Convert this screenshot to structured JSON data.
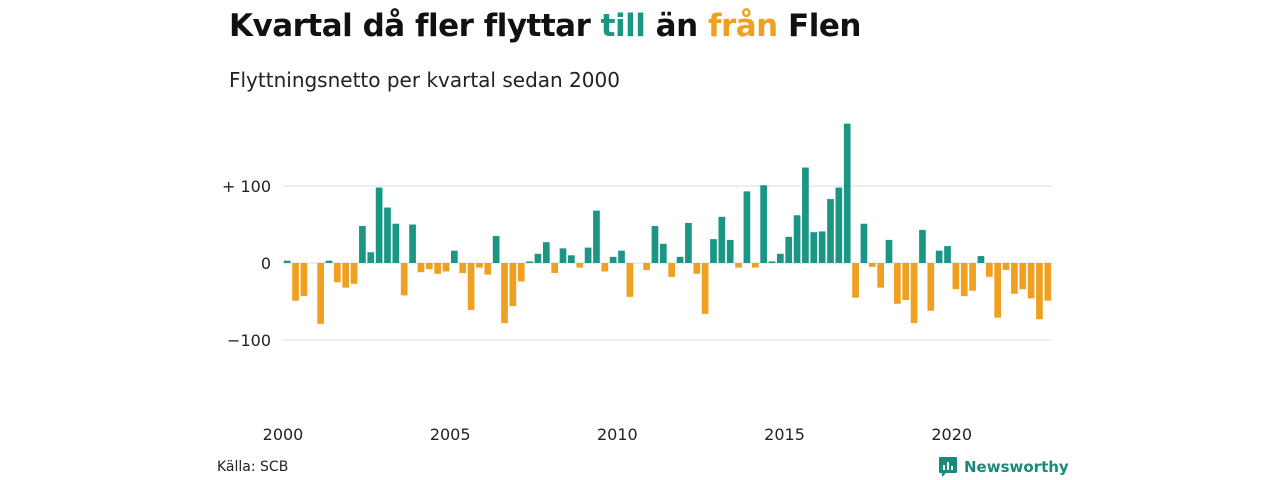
{
  "header": {
    "title_prefix": "Kvartal då fler flyttar ",
    "title_till": "till",
    "title_middle": " än ",
    "title_fran": "från",
    "title_suffix": " Flen",
    "subtitle": "Flyttningsnetto per kvartal sedan 2000"
  },
  "footer": {
    "source": "Källa: SCB",
    "brand": "Newsworthy"
  },
  "colors": {
    "positive": "#1a9684",
    "negative": "#f0a020",
    "grid": "#dddddd",
    "brand": "#1a8a7a"
  },
  "chart_data": {
    "type": "bar",
    "start_year": 2000,
    "periods_per_year": 4,
    "x_ticks": [
      "2000",
      "2005",
      "2010",
      "2015",
      "2020"
    ],
    "y_ticks": [
      {
        "value": 100,
        "label": "+ 100"
      },
      {
        "value": 0,
        "label": "0"
      },
      {
        "value": -100,
        "label": "−100"
      }
    ],
    "ylim": [
      -150,
      180
    ],
    "values": [
      3,
      -49,
      -43,
      0,
      -79,
      3,
      -25,
      -32,
      -27,
      48,
      14,
      98,
      72,
      51,
      -42,
      50,
      -12,
      -8,
      -14,
      -11,
      16,
      -13,
      -61,
      -6,
      -15,
      35,
      -78,
      -56,
      -24,
      2,
      12,
      27,
      -13,
      19,
      10,
      -6,
      20,
      68,
      -11,
      8,
      16,
      -44,
      0,
      -9,
      48,
      25,
      -18,
      8,
      52,
      -14,
      -66,
      31,
      60,
      30,
      -6,
      93,
      -6,
      101,
      2,
      12,
      34,
      62,
      124,
      40,
      41,
      83,
      98,
      181,
      -45,
      51,
      -5,
      -32,
      30,
      -53,
      -48,
      -78,
      43,
      -62,
      16,
      22,
      -34,
      -43,
      -36,
      9,
      -18,
      -71,
      -9,
      -40,
      -34,
      -46,
      -73,
      -49
    ]
  }
}
